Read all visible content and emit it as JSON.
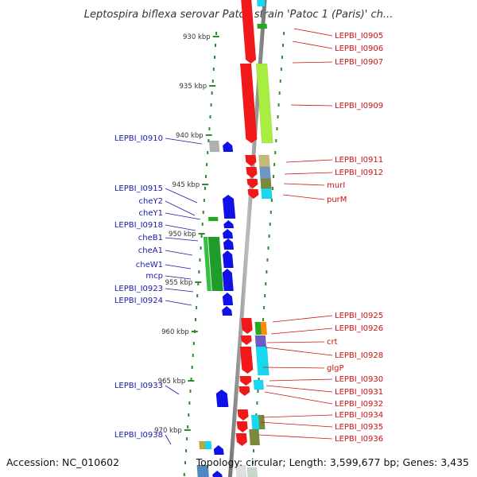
{
  "title": "Leptospira biflexa serovar Patoc strain 'Patoc 1 (Paris)' ch...",
  "footer": {
    "accession": "Accession: NC_010602",
    "topology": "Topology: circular; Length: 3,599,677 bp; Genes: 3,435"
  },
  "colors": {
    "left_labels": "#1a1aa6",
    "right_labels": "#cc1111",
    "backbone": "#888888",
    "dots": "#2e8b2e"
  },
  "scale_ticks": [
    {
      "label": "930 kbp"
    },
    {
      "label": "935 kbp"
    },
    {
      "label": "940 kbp"
    },
    {
      "label": "945 kbp"
    },
    {
      "label": "950 kbp"
    },
    {
      "label": "955 kbp"
    },
    {
      "label": "960 kbp"
    },
    {
      "label": "965 kbp"
    },
    {
      "label": "970 kbp"
    }
  ],
  "left_labels": [
    {
      "text": "LEPBI_I0910"
    },
    {
      "text": "LEPBI_I0915"
    },
    {
      "text": "cheY2"
    },
    {
      "text": "cheY1"
    },
    {
      "text": "LEPBI_I0918"
    },
    {
      "text": "cheB1"
    },
    {
      "text": "cheA1"
    },
    {
      "text": "cheW1"
    },
    {
      "text": "mcp"
    },
    {
      "text": "LEPBI_I0923"
    },
    {
      "text": "LEPBI_I0924"
    },
    {
      "text": "LEPBI_I0933"
    },
    {
      "text": "LEPBI_I0938"
    }
  ],
  "right_labels": [
    {
      "text": "LEPBI_I0905"
    },
    {
      "text": "LEPBI_I0906"
    },
    {
      "text": "LEPBI_I0907"
    },
    {
      "text": "LEPBI_I0909"
    },
    {
      "text": "LEPBI_I0911"
    },
    {
      "text": "LEPBI_I0912"
    },
    {
      "text": "murI"
    },
    {
      "text": "purM"
    },
    {
      "text": "LEPBI_I0925"
    },
    {
      "text": "LEPBI_I0926"
    },
    {
      "text": "crt"
    },
    {
      "text": "LEPBI_I0928"
    },
    {
      "text": "glgP"
    },
    {
      "text": "LEPBI_I0930"
    },
    {
      "text": "LEPBI_I0931"
    },
    {
      "text": "LEPBI_I0932"
    },
    {
      "text": "LEPBI_I0934"
    },
    {
      "text": "LEPBI_I0935"
    },
    {
      "text": "LEPBI_I0936"
    }
  ]
}
